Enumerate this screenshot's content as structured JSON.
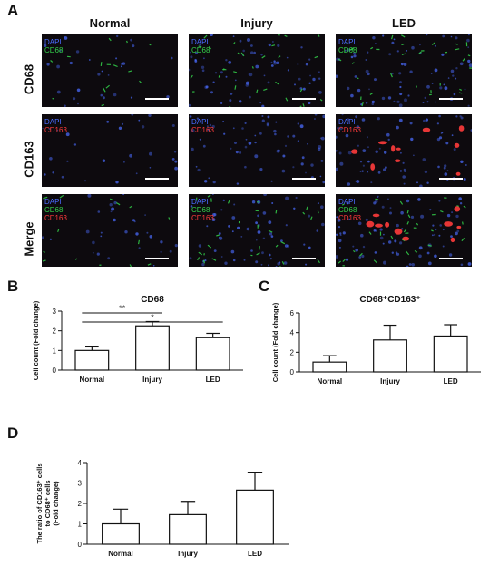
{
  "figure": {
    "panel_letters": {
      "a": "A",
      "b": "B",
      "c": "C",
      "d": "D"
    },
    "columns": [
      "Normal",
      "Injury",
      "LED"
    ],
    "rows": [
      {
        "label": "CD68",
        "channels": [
          "DAPI",
          "CD68"
        ]
      },
      {
        "label": "CD163",
        "channels": [
          "DAPI",
          "CD163"
        ]
      },
      {
        "label": "Merge",
        "channels": [
          "DAPI",
          "CD68",
          "CD163"
        ]
      }
    ],
    "colors": {
      "dapi": "#4a6cff",
      "cd68": "#33d14a",
      "cd163": "#ff3b3b",
      "background": "#0d0a0e"
    }
  },
  "chart_data": [
    {
      "panel": "B",
      "type": "bar",
      "title": "CD68",
      "ylabel": "Cell count (Fold change)",
      "categories": [
        "Normal",
        "Injury",
        "LED"
      ],
      "values": [
        1.0,
        2.25,
        1.65
      ],
      "errors": [
        0.18,
        0.22,
        0.22
      ],
      "ylim": [
        0,
        3
      ],
      "yticks": [
        0,
        1,
        2,
        3
      ],
      "significance": [
        {
          "from": 0,
          "to": 1,
          "label": "**"
        },
        {
          "from": 0,
          "to": 2,
          "label": "*"
        }
      ]
    },
    {
      "panel": "C",
      "type": "bar",
      "title": "CD68⁺CD163⁺",
      "ylabel": "Cell count (Fold change)",
      "categories": [
        "Normal",
        "Injury",
        "LED"
      ],
      "values": [
        1.0,
        3.25,
        3.65
      ],
      "errors": [
        0.65,
        1.5,
        1.15
      ],
      "ylim": [
        0,
        6
      ],
      "yticks": [
        0,
        2,
        4,
        6
      ]
    },
    {
      "panel": "D",
      "type": "bar",
      "title": "",
      "ylabel_lines": [
        "The ratio of CD163⁺ cells",
        "to CD68⁺ cells",
        "(Fold change)"
      ],
      "categories": [
        "Normal",
        "Injury",
        "LED"
      ],
      "values": [
        1.0,
        1.45,
        2.65
      ],
      "errors": [
        0.72,
        0.65,
        0.88
      ],
      "ylim": [
        0,
        4
      ],
      "yticks": [
        0,
        1,
        2,
        3,
        4
      ]
    }
  ]
}
